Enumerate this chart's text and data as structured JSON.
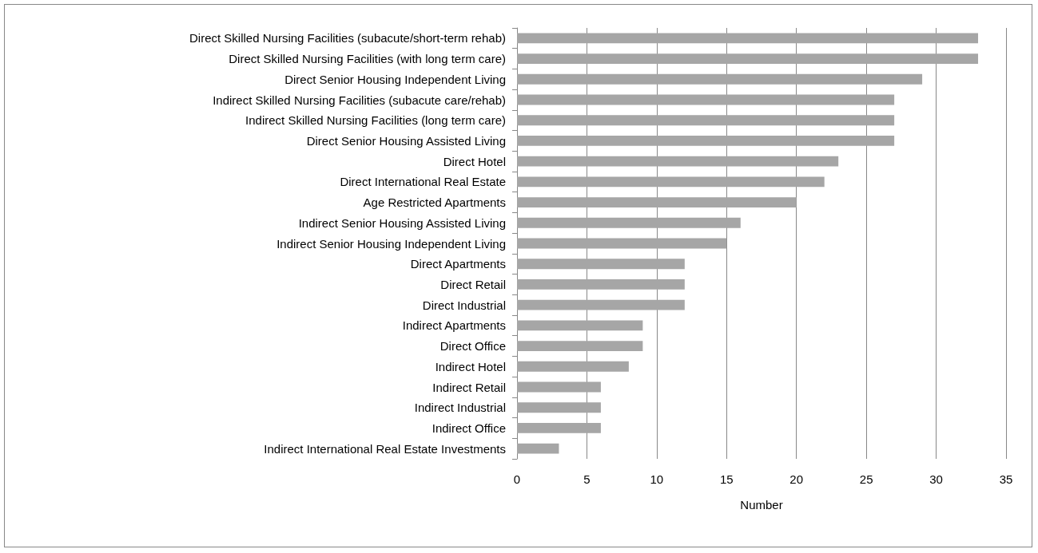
{
  "chart_data": {
    "type": "bar",
    "orientation": "horizontal",
    "xlabel": "Number",
    "categories": [
      "Direct Skilled Nursing Facilities (subacute/short-term rehab)",
      "Direct Skilled Nursing Facilities (with long term care)",
      "Direct Senior Housing Independent Living",
      "Indirect Skilled Nursing Facilities (subacute care/rehab)",
      "Indirect Skilled Nursing Facilities (long term care)",
      "Direct Senior Housing Assisted Living",
      "Direct Hotel",
      "Direct International Real Estate",
      "Age Restricted Apartments",
      "Indirect Senior Housing Assisted Living",
      "Indirect Senior Housing Independent Living",
      "Direct Apartments",
      "Direct Retail",
      "Direct Industrial",
      "Indirect Apartments",
      "Direct Office",
      "Indirect Hotel",
      "Indirect Retail",
      "Indirect Industrial",
      "Indirect Office",
      "Indirect International Real Estate Investments"
    ],
    "values": [
      33,
      33,
      29,
      27,
      27,
      27,
      23,
      22,
      20,
      16,
      15,
      12,
      12,
      12,
      9,
      9,
      8,
      6,
      6,
      6,
      3
    ],
    "color": "#a6a6a6",
    "xlim": [
      0,
      35
    ],
    "xticks": [
      0,
      5,
      10,
      15,
      20,
      25,
      30,
      35
    ],
    "grid": "x"
  }
}
